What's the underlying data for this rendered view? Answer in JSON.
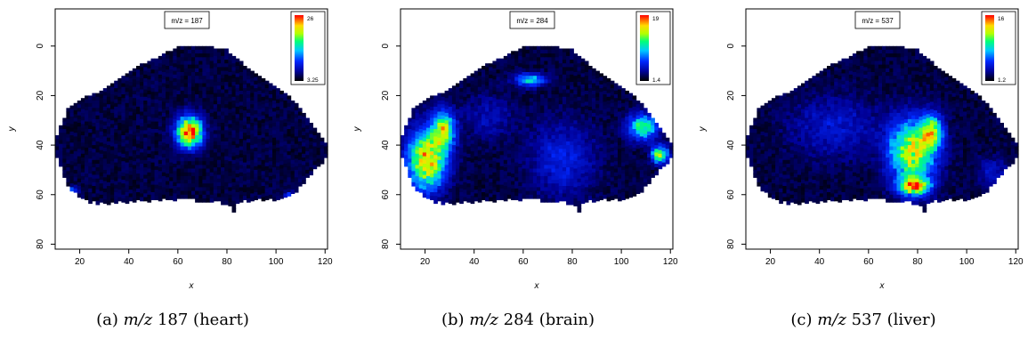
{
  "figures": [
    {
      "caption_prefix": "(a)",
      "caption_mz": "m/z",
      "caption_suffix": "187 (heart)",
      "chart_data": {
        "type": "heatmap",
        "title": "m/z = 187",
        "xlabel": "x",
        "ylabel": "y",
        "xlim": [
          10,
          121
        ],
        "ylim": [
          82,
          -15
        ],
        "xticks": [
          20,
          40,
          60,
          80,
          100,
          120
        ],
        "yticks": [
          0,
          20,
          40,
          60,
          80
        ],
        "colorbar": {
          "max": "26",
          "min": "3.25"
        },
        "hotspots": [
          {
            "x": 64,
            "y": 34,
            "rx": 6,
            "ry": 7,
            "peak": 0.95
          },
          {
            "x": 105,
            "y": 60,
            "rx": 3,
            "ry": 2,
            "peak": 0.35
          },
          {
            "x": 16,
            "y": 58,
            "rx": 3,
            "ry": 2,
            "peak": 0.3
          }
        ]
      }
    },
    {
      "caption_prefix": "(b)",
      "caption_mz": "m/z",
      "caption_suffix": "284 (brain)",
      "chart_data": {
        "type": "heatmap",
        "title": "m/z = 284",
        "xlabel": "x",
        "ylabel": "y",
        "xlim": [
          10,
          121
        ],
        "ylim": [
          82,
          -15
        ],
        "xticks": [
          20,
          40,
          60,
          80,
          100,
          120
        ],
        "yticks": [
          0,
          20,
          40,
          60,
          80
        ],
        "colorbar": {
          "max": "19",
          "min": "1.4"
        },
        "hotspots": [
          {
            "x": 20,
            "y": 45,
            "rx": 9,
            "ry": 14,
            "peak": 0.8
          },
          {
            "x": 27,
            "y": 33,
            "rx": 5,
            "ry": 9,
            "peak": 0.6
          },
          {
            "x": 62,
            "y": 13,
            "rx": 7,
            "ry": 3,
            "peak": 0.45
          },
          {
            "x": 108,
            "y": 32,
            "rx": 7,
            "ry": 6,
            "peak": 0.55
          },
          {
            "x": 115,
            "y": 43,
            "rx": 4,
            "ry": 4,
            "peak": 0.65
          },
          {
            "x": 75,
            "y": 45,
            "rx": 15,
            "ry": 17,
            "peak": 0.2
          },
          {
            "x": 45,
            "y": 28,
            "rx": 12,
            "ry": 10,
            "peak": 0.12
          }
        ]
      }
    },
    {
      "caption_prefix": "(c)",
      "caption_mz": "m/z",
      "caption_suffix": "537 (liver)",
      "chart_data": {
        "type": "heatmap",
        "title": "m/z = 537",
        "xlabel": "x",
        "ylabel": "y",
        "xlim": [
          10,
          121
        ],
        "ylim": [
          82,
          -15
        ],
        "xticks": [
          20,
          40,
          60,
          80,
          100,
          120
        ],
        "yticks": [
          0,
          20,
          40,
          60,
          80
        ],
        "colorbar": {
          "max": "16",
          "min": "1.2"
        },
        "hotspots": [
          {
            "x": 77,
            "y": 42,
            "rx": 11,
            "ry": 15,
            "peak": 0.7
          },
          {
            "x": 85,
            "y": 34,
            "rx": 5,
            "ry": 8,
            "peak": 0.6
          },
          {
            "x": 78,
            "y": 56,
            "rx": 7,
            "ry": 4,
            "peak": 0.75
          },
          {
            "x": 45,
            "y": 32,
            "rx": 20,
            "ry": 14,
            "peak": 0.16
          },
          {
            "x": 110,
            "y": 50,
            "rx": 7,
            "ry": 7,
            "peak": 0.14
          }
        ]
      }
    }
  ]
}
